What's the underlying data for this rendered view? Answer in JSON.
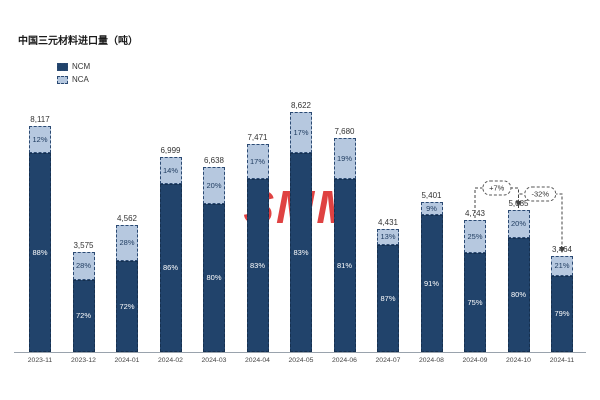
{
  "chart_data": {
    "type": "bar",
    "stacked": true,
    "title": "中国三元材料进口量（吨）",
    "categories": [
      "2023-11",
      "2023-12",
      "2024-01",
      "2024-02",
      "2024-03",
      "2024-04",
      "2024-05",
      "2024-06",
      "2024-07",
      "2024-08",
      "2024-09",
      "2024-10",
      "2024-11"
    ],
    "totals": [
      8117,
      3575,
      4562,
      6999,
      6638,
      7471,
      8622,
      7680,
      4431,
      5401,
      4743,
      5085,
      3464
    ],
    "series": [
      {
        "name": "NCM",
        "unit": "%",
        "values": [
          88,
          72,
          72,
          86,
          80,
          83,
          83,
          81,
          87,
          91,
          75,
          80,
          79
        ]
      },
      {
        "name": "NCA",
        "unit": "%",
        "values": [
          12,
          28,
          28,
          14,
          20,
          17,
          17,
          19,
          13,
          9,
          25,
          20,
          21
        ]
      }
    ],
    "annotations": [
      {
        "label": "+7%",
        "from": "2024-09",
        "to": "2024-10"
      },
      {
        "label": "-32%",
        "from": "2024-10",
        "to": "2024-11"
      }
    ],
    "colors": {
      "ncm": "#21436b",
      "nca": "#b6c8df",
      "annotation": "#444",
      "watermark": "#db2828"
    },
    "watermark": "SMM",
    "xlabel": "",
    "ylabel": "",
    "ylim": [
      0,
      9000
    ],
    "grid": false,
    "legend_position": "top-left"
  }
}
